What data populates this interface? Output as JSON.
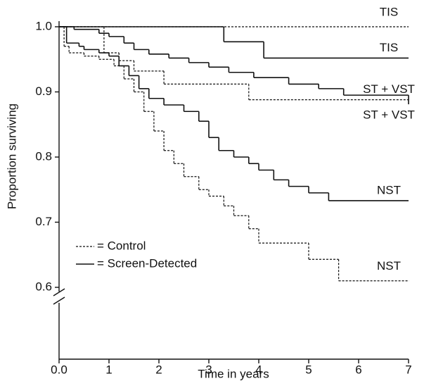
{
  "chart_data": {
    "type": "step",
    "xlabel": "Time in years",
    "ylabel": "Proportion surviving",
    "xlim": [
      0,
      7
    ],
    "ylim": [
      0.6,
      1.0
    ],
    "xticks": [
      {
        "value": 0,
        "label": "0.0"
      },
      1,
      2,
      3,
      4,
      5,
      6,
      7
    ],
    "yticks": [
      {
        "value": 1,
        "label": "1.0"
      },
      0.9,
      0.8,
      0.7,
      0.6
    ],
    "legend": [
      {
        "label": "= Control",
        "dashed": true
      },
      {
        "label": "= Screen-Detected",
        "dashed": false
      }
    ],
    "series": [
      {
        "name": "TIS",
        "dashed": true,
        "x": [
          0,
          7
        ],
        "values": [
          1,
          1
        ]
      },
      {
        "name": "TIS",
        "dashed": false,
        "x": [
          0,
          3.3,
          4.1,
          7
        ],
        "values": [
          1,
          0.977,
          0.952,
          0.952
        ]
      },
      {
        "name": "ST + VST",
        "dashed": true,
        "x": [
          0,
          0.9,
          1.2,
          1.5,
          2.1,
          3.8,
          7
        ],
        "values": [
          1,
          0.96,
          0.948,
          0.932,
          0.912,
          0.888,
          0.888
        ]
      },
      {
        "name": "ST + VST",
        "dashed": false,
        "x": [
          0,
          0.3,
          0.8,
          1.0,
          1.3,
          1.5,
          1.8,
          2.2,
          2.6,
          3.0,
          3.4,
          3.9,
          4.6,
          5.2,
          5.7,
          7
        ],
        "values": [
          1,
          0.996,
          0.99,
          0.985,
          0.975,
          0.965,
          0.958,
          0.952,
          0.945,
          0.938,
          0.93,
          0.922,
          0.912,
          0.905,
          0.895,
          0.881
        ]
      },
      {
        "name": "NST",
        "dashed": false,
        "x": [
          0,
          0.15,
          0.4,
          0.5,
          0.8,
          1.0,
          1.2,
          1.4,
          1.6,
          1.8,
          2.1,
          2.5,
          2.8,
          3.0,
          3.2,
          3.5,
          3.8,
          4.0,
          4.3,
          4.6,
          5.0,
          5.4,
          7
        ],
        "values": [
          1,
          0.975,
          0.97,
          0.965,
          0.96,
          0.955,
          0.94,
          0.925,
          0.905,
          0.89,
          0.88,
          0.87,
          0.855,
          0.83,
          0.81,
          0.8,
          0.79,
          0.78,
          0.765,
          0.755,
          0.745,
          0.733,
          0.733
        ]
      },
      {
        "name": "NST",
        "dashed": true,
        "x": [
          0,
          0.1,
          0.2,
          0.5,
          0.8,
          1.1,
          1.3,
          1.5,
          1.7,
          1.9,
          2.1,
          2.3,
          2.5,
          2.8,
          3.0,
          3.3,
          3.5,
          3.8,
          4.0,
          5.0,
          5.6,
          7
        ],
        "values": [
          1,
          0.97,
          0.96,
          0.955,
          0.95,
          0.94,
          0.92,
          0.9,
          0.87,
          0.84,
          0.81,
          0.79,
          0.77,
          0.75,
          0.74,
          0.725,
          0.71,
          0.69,
          0.668,
          0.643,
          0.61,
          0.61
        ]
      }
    ]
  }
}
